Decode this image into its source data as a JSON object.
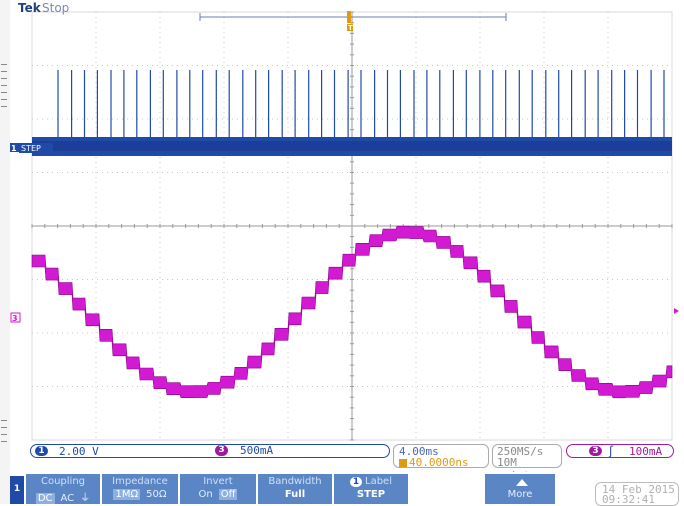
{
  "header": {
    "brand": "Tek",
    "run_state": "Stop"
  },
  "markers": {
    "ch1_label": "STEP",
    "ch1_marker": "1",
    "ch3_marker": "3",
    "trigger_marker": "T"
  },
  "readouts": {
    "ch1_badge": "1",
    "ch1_scale": "2.00 V",
    "ch3_badge": "3",
    "ch3_scale": "500mA",
    "timebase": "4.00ms",
    "trigger_position": "40.0000ns",
    "sample_rate": "250MS/s",
    "record_length": "10M points",
    "trigger_badge": "3",
    "trigger_slope": "ʃ",
    "trigger_level": "100mA"
  },
  "menu": {
    "channel": "1",
    "coupling": {
      "title": "Coupling",
      "options": [
        "DC",
        "AC",
        "⏚"
      ],
      "selected": "DC"
    },
    "impedance": {
      "title": "Impedance",
      "options": [
        "1MΩ",
        "50Ω"
      ],
      "selected": "1MΩ"
    },
    "invert": {
      "title": "Invert",
      "options": [
        "On",
        "Off"
      ],
      "selected": "Off"
    },
    "bandwidth": {
      "title": "Bandwidth",
      "value": "Full"
    },
    "label": {
      "badge": "1",
      "title": "Label",
      "value": "STEP"
    },
    "more": {
      "title": "More"
    }
  },
  "datetime": {
    "date": "14 Feb 2015",
    "time": "09:32:41"
  },
  "colors": {
    "ch1": "#1f4aa8",
    "ch3": "#d21ad2",
    "trigger": "#e09a10",
    "menu_button": "#5a86c6"
  }
}
